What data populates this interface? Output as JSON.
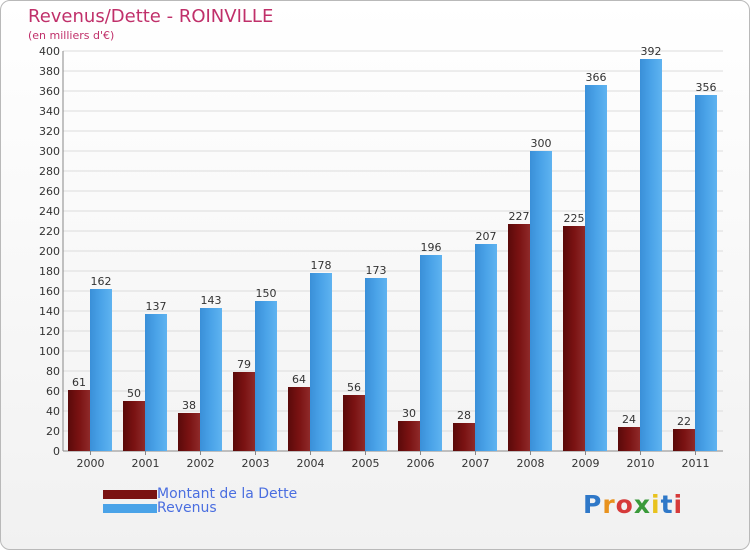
{
  "title": "Revenus/Dette - ROINVILLE",
  "subtitle": "(en milliers d'€)",
  "logo": {
    "letters": [
      "P",
      "r",
      "o",
      "x",
      "i",
      "t",
      "i"
    ],
    "colors": [
      "#2f78c8",
      "#e8921e",
      "#d63a3a",
      "#3a9a3a",
      "#e8c21e",
      "#2f78c8",
      "#d63a3a"
    ]
  },
  "colors": {
    "dette": "#7a1212",
    "revenus": "#4aa3e8",
    "axis_text": "#333333",
    "grid": "#dcdcdc"
  },
  "chart_data": {
    "type": "bar",
    "title": "Revenus/Dette - ROINVILLE",
    "subtitle": "(en milliers d'€)",
    "categories": [
      "2000",
      "2001",
      "2002",
      "2003",
      "2004",
      "2005",
      "2006",
      "2007",
      "2008",
      "2009",
      "2010",
      "2011"
    ],
    "series": [
      {
        "name": "Montant de la Dette",
        "values": [
          61,
          50,
          38,
          79,
          64,
          56,
          30,
          28,
          227,
          225,
          24,
          22
        ]
      },
      {
        "name": "Revenus",
        "values": [
          162,
          137,
          143,
          150,
          178,
          173,
          196,
          207,
          300,
          366,
          392,
          356
        ]
      }
    ],
    "ylim": [
      0,
      400
    ],
    "ytick_step": 20,
    "grid": true,
    "legend_position": "bottom-left"
  }
}
